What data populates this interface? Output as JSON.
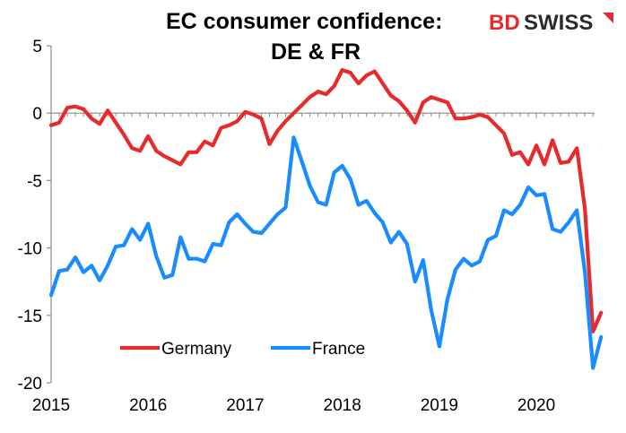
{
  "chart_data": {
    "type": "line",
    "title_line1": "EC consumer confidence:",
    "title_line2": "DE & FR",
    "xlabel": "",
    "ylabel": "",
    "ylim": [
      -20,
      5
    ],
    "yticks": [
      5,
      0,
      -5,
      -10,
      -15,
      -20
    ],
    "xlim": [
      2015,
      2020.6
    ],
    "xticks": [
      "2015",
      "2016",
      "2017",
      "2018",
      "2019",
      "2020"
    ],
    "legend_position": "bottom-center",
    "grid": false,
    "series": [
      {
        "name": "Germany",
        "color": "#e52b2b",
        "values": [
          -0.9,
          -0.7,
          0.4,
          0.5,
          0.3,
          -0.4,
          -0.8,
          0.2,
          -0.7,
          -1.6,
          -2.6,
          -2.8,
          -1.7,
          -2.8,
          -3.2,
          -3.5,
          -3.8,
          -2.9,
          -2.9,
          -2.1,
          -2.4,
          -1.1,
          -0.9,
          -0.6,
          0.1,
          -0.1,
          -0.4,
          -2.3,
          -1.3,
          -0.6,
          0.0,
          0.6,
          1.2,
          1.6,
          1.4,
          2.0,
          3.2,
          3.0,
          2.2,
          2.8,
          3.1,
          2.2,
          1.3,
          0.9,
          0.2,
          -0.7,
          0.8,
          1.2,
          1.0,
          0.8,
          -0.4,
          -0.4,
          -0.3,
          -0.1,
          -0.3,
          -0.9,
          -1.5,
          -3.1,
          -2.9,
          -3.8,
          -2.4,
          -3.8,
          -2.0,
          -3.7,
          -3.6,
          -2.6,
          -7.1,
          -16.2,
          -14.8
        ]
      },
      {
        "name": "France",
        "color": "#1a8cff",
        "values": [
          -13.5,
          -11.7,
          -11.6,
          -10.7,
          -11.8,
          -11.3,
          -12.4,
          -11.3,
          -9.9,
          -9.8,
          -8.6,
          -9.4,
          -8.2,
          -10.6,
          -12.2,
          -12.0,
          -9.2,
          -10.8,
          -10.8,
          -11.0,
          -9.7,
          -9.8,
          -8.1,
          -7.5,
          -8.2,
          -8.8,
          -8.9,
          -8.2,
          -7.5,
          -7.0,
          -1.8,
          -3.6,
          -5.4,
          -6.6,
          -6.8,
          -4.4,
          -3.9,
          -4.9,
          -6.8,
          -6.5,
          -7.4,
          -8.1,
          -9.6,
          -8.8,
          -9.7,
          -12.5,
          -10.9,
          -14.6,
          -17.3,
          -13.8,
          -11.6,
          -10.8,
          -11.3,
          -11.0,
          -9.4,
          -9.1,
          -7.2,
          -7.5,
          -6.8,
          -5.5,
          -6.1,
          -6.0,
          -8.6,
          -8.8,
          -8.1,
          -7.2,
          -11.8,
          -18.9,
          -16.6
        ]
      }
    ]
  },
  "logo": {
    "bd": "BD",
    "swiss": "SWISS",
    "colors": {
      "bd": "#e52b2b",
      "swiss": "#2b2b2b",
      "mark": "#e52b2b"
    }
  }
}
